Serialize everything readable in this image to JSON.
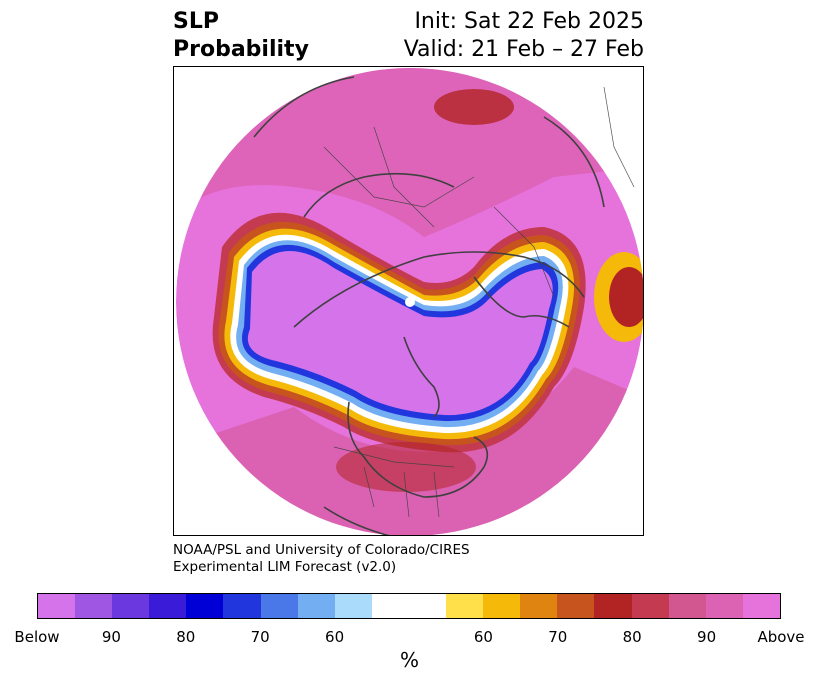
{
  "title": {
    "left_line1": "SLP",
    "left_line2": "Probability",
    "right_line1": "Init: Sat 22 Feb 2025",
    "right_line2": "Valid: 21 Feb – 27 Feb"
  },
  "credit": {
    "line1": "NOAA/PSL and University of Colorado/CIRES",
    "line2": "Experimental LIM Forecast (v2.0)"
  },
  "colorbar": {
    "unit": "%",
    "ticks": [
      "Below",
      "90",
      "80",
      "70",
      "60",
      "60",
      "70",
      "80",
      "90",
      "Above"
    ],
    "colors": [
      "#d473ea",
      "#9f56e2",
      "#6a38de",
      "#3a1bd8",
      "#0000d6",
      "#2236dd",
      "#4b78e8",
      "#72aef1",
      "#aadbfb",
      "#ffffff",
      "#ffe04a",
      "#f5b90a",
      "#df8410",
      "#c7531e",
      "#b22424",
      "#c43a50",
      "#d25690",
      "#dc62b3",
      "#e672dc"
    ]
  },
  "map": {
    "projection": "north-polar-stereographic",
    "colors": {
      "below_core": "#d473ea",
      "above_core": "#e672dc",
      "coast": "#404040"
    }
  }
}
